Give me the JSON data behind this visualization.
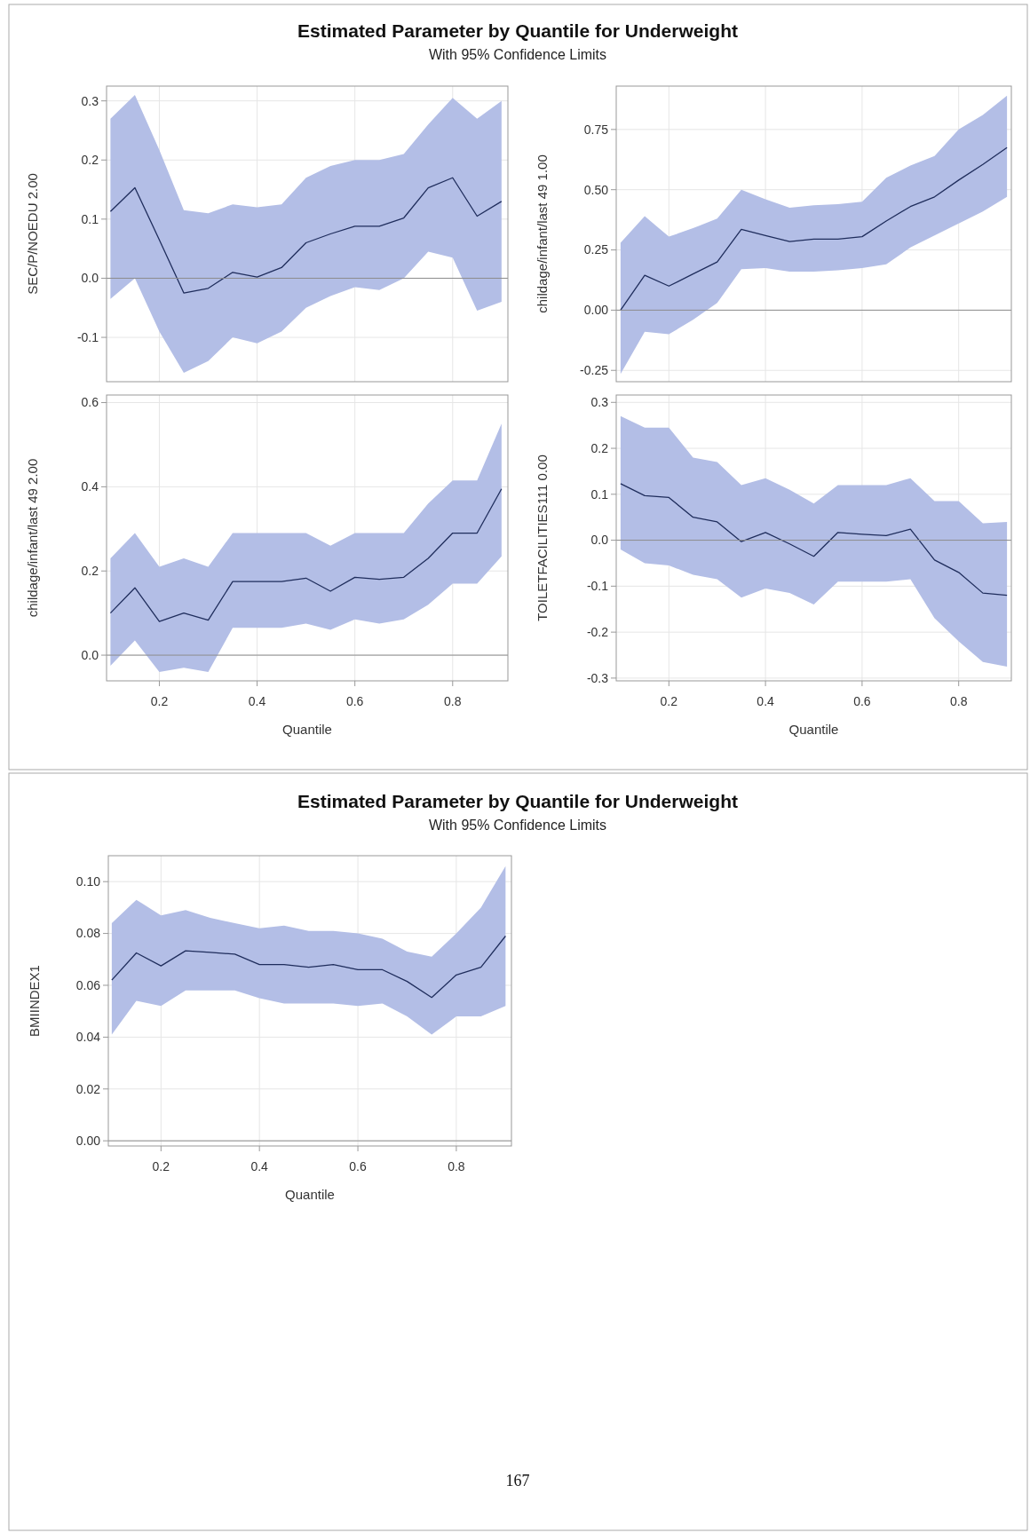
{
  "chart_data": [
    {
      "type": "line",
      "title": "Estimated Parameter by Quantile for Underweight",
      "subtitle": "With 95% Confidence Limits",
      "ylabel": "SEC/P/NOEDU 2.00",
      "x": [
        0.1,
        0.15,
        0.2,
        0.25,
        0.3,
        0.35,
        0.4,
        0.45,
        0.5,
        0.55,
        0.6,
        0.65,
        0.7,
        0.75,
        0.8,
        0.85,
        0.9
      ],
      "xlim": [
        0.092,
        0.913
      ],
      "xticks": [
        0.2,
        0.4,
        0.6,
        0.8
      ],
      "ylim": [
        -0.175,
        0.325
      ],
      "yticks": [
        {
          "value": -0.1,
          "label": "-0.1"
        },
        {
          "value": 0,
          "label": "0.0"
        },
        {
          "value": 0.1,
          "label": "0.1"
        },
        {
          "value": 0.2,
          "label": "0.2"
        },
        {
          "value": 0.3,
          "label": "0.3"
        }
      ],
      "grid": true,
      "tick_labels": "y",
      "ref_lines": [
        {
          "axis": "y",
          "value": 0,
          "color": "#8c8c8c"
        }
      ],
      "series": [
        {
          "color": "#1f2d5c",
          "values": [
            0.113,
            0.153,
            0.065,
            -0.025,
            -0.017,
            0.01,
            0.002,
            0.018,
            0.06,
            0.075,
            0.088,
            0.088,
            0.102,
            0.153,
            0.17,
            0.105,
            0.13
          ],
          "lower": [
            -0.035,
            0.0,
            -0.09,
            -0.16,
            -0.14,
            -0.1,
            -0.11,
            -0.09,
            -0.05,
            -0.03,
            -0.015,
            -0.02,
            0.0,
            0.045,
            0.035,
            -0.055,
            -0.04
          ],
          "upper": [
            0.27,
            0.31,
            0.217,
            0.115,
            0.11,
            0.125,
            0.12,
            0.125,
            0.17,
            0.19,
            0.2,
            0.2,
            0.21,
            0.26,
            0.305,
            0.27,
            0.3
          ]
        }
      ]
    },
    {
      "type": "line",
      "ylabel": "childage/infant/last 49 1.00",
      "x": [
        0.1,
        0.15,
        0.2,
        0.25,
        0.3,
        0.35,
        0.4,
        0.45,
        0.5,
        0.55,
        0.6,
        0.65,
        0.7,
        0.75,
        0.8,
        0.85,
        0.9
      ],
      "xlim": [
        0.091,
        0.909
      ],
      "xticks": [
        0.2,
        0.4,
        0.6,
        0.8
      ],
      "ylim": [
        -0.297,
        0.93
      ],
      "yticks": [
        {
          "value": -0.25,
          "label": "-0.25"
        },
        {
          "value": 0,
          "label": "0.00"
        },
        {
          "value": 0.25,
          "label": "0.25"
        },
        {
          "value": 0.5,
          "label": "0.50"
        },
        {
          "value": 0.75,
          "label": "0.75"
        }
      ],
      "grid": true,
      "tick_labels": "y",
      "ref_lines": [
        {
          "axis": "y",
          "value": 0,
          "color": "#8c8c8c"
        }
      ],
      "series": [
        {
          "color": "#1f2d5c",
          "values": [
            0.0,
            0.145,
            0.1,
            0.15,
            0.2,
            0.335,
            0.31,
            0.285,
            0.295,
            0.295,
            0.305,
            0.37,
            0.43,
            0.47,
            0.54,
            0.605,
            0.675
          ],
          "lower": [
            -0.265,
            -0.09,
            -0.1,
            -0.04,
            0.03,
            0.17,
            0.175,
            0.16,
            0.16,
            0.165,
            0.175,
            0.19,
            0.26,
            0.31,
            0.36,
            0.41,
            0.47
          ],
          "upper": [
            0.28,
            0.39,
            0.305,
            0.34,
            0.38,
            0.5,
            0.46,
            0.425,
            0.435,
            0.44,
            0.45,
            0.55,
            0.6,
            0.64,
            0.75,
            0.81,
            0.89
          ]
        }
      ]
    },
    {
      "type": "line",
      "xlabel": "Quantile",
      "ylabel": "childage/infant/last 49 2.00",
      "x": [
        0.1,
        0.15,
        0.2,
        0.25,
        0.3,
        0.35,
        0.4,
        0.45,
        0.5,
        0.55,
        0.6,
        0.65,
        0.7,
        0.75,
        0.8,
        0.85,
        0.9
      ],
      "xlim": [
        0.092,
        0.913
      ],
      "xticks": [
        0.2,
        0.4,
        0.6,
        0.8
      ],
      "ylim": [
        -0.061,
        0.618
      ],
      "yticks": [
        {
          "value": 0,
          "label": "0.0"
        },
        {
          "value": 0.2,
          "label": "0.2"
        },
        {
          "value": 0.4,
          "label": "0.4"
        },
        {
          "value": 0.6,
          "label": "0.6"
        }
      ],
      "grid": true,
      "ref_lines": [
        {
          "axis": "y",
          "value": 0,
          "color": "#8c8c8c"
        }
      ],
      "series": [
        {
          "color": "#1f2d5c",
          "values": [
            0.1,
            0.16,
            0.08,
            0.1,
            0.083,
            0.175,
            0.175,
            0.175,
            0.183,
            0.152,
            0.185,
            0.18,
            0.185,
            0.23,
            0.29,
            0.29,
            0.395
          ],
          "lower": [
            -0.025,
            0.035,
            -0.04,
            -0.03,
            -0.04,
            0.065,
            0.065,
            0.065,
            0.075,
            0.06,
            0.085,
            0.075,
            0.085,
            0.12,
            0.17,
            0.17,
            0.235
          ],
          "upper": [
            0.23,
            0.29,
            0.21,
            0.23,
            0.21,
            0.29,
            0.29,
            0.29,
            0.29,
            0.26,
            0.29,
            0.29,
            0.29,
            0.36,
            0.415,
            0.415,
            0.55
          ]
        }
      ]
    },
    {
      "type": "line",
      "xlabel": "Quantile",
      "ylabel": "TOILETFACILITIES111 0.00",
      "x": [
        0.1,
        0.15,
        0.2,
        0.25,
        0.3,
        0.35,
        0.4,
        0.45,
        0.5,
        0.55,
        0.6,
        0.65,
        0.7,
        0.75,
        0.8,
        0.85,
        0.9
      ],
      "xlim": [
        0.091,
        0.909
      ],
      "xticks": [
        0.2,
        0.4,
        0.6,
        0.8
      ],
      "ylim": [
        -0.306,
        0.316
      ],
      "yticks": [
        {
          "value": -0.3,
          "label": "-0.3"
        },
        {
          "value": -0.2,
          "label": "-0.2"
        },
        {
          "value": -0.1,
          "label": "-0.1"
        },
        {
          "value": 0,
          "label": "0.0"
        },
        {
          "value": 0.1,
          "label": "0.1"
        },
        {
          "value": 0.2,
          "label": "0.2"
        },
        {
          "value": 0.3,
          "label": "0.3"
        }
      ],
      "grid": true,
      "ref_lines": [
        {
          "axis": "y",
          "value": 0,
          "color": "#8c8c8c"
        }
      ],
      "series": [
        {
          "color": "#1f2d5c",
          "values": [
            0.123,
            0.097,
            0.093,
            0.05,
            0.04,
            -0.003,
            0.017,
            -0.008,
            -0.035,
            0.017,
            0.013,
            0.01,
            0.024,
            -0.043,
            -0.07,
            -0.115,
            -0.12
          ],
          "lower": [
            -0.02,
            -0.05,
            -0.055,
            -0.075,
            -0.085,
            -0.125,
            -0.105,
            -0.115,
            -0.14,
            -0.09,
            -0.09,
            -0.09,
            -0.085,
            -0.17,
            -0.22,
            -0.265,
            -0.275
          ],
          "upper": [
            0.27,
            0.245,
            0.245,
            0.18,
            0.17,
            0.12,
            0.135,
            0.11,
            0.08,
            0.12,
            0.12,
            0.12,
            0.135,
            0.085,
            0.085,
            0.037,
            0.04
          ]
        }
      ]
    },
    {
      "type": "line",
      "title": "Estimated Parameter by Quantile for Underweight",
      "subtitle": "With 95% Confidence Limits",
      "xlabel": "Quantile",
      "ylabel": "BMIINDEX1",
      "annotations": [
        "167"
      ],
      "x": [
        0.1,
        0.15,
        0.2,
        0.25,
        0.3,
        0.35,
        0.4,
        0.45,
        0.5,
        0.55,
        0.6,
        0.65,
        0.7,
        0.75,
        0.8,
        0.85,
        0.9
      ],
      "xlim": [
        0.093,
        0.912
      ],
      "xticks": [
        0.2,
        0.4,
        0.6,
        0.8
      ],
      "ylim": [
        -0.002,
        0.11
      ],
      "yticks": [
        {
          "value": 0,
          "label": "0.00"
        },
        {
          "value": 0.02,
          "label": "0.02"
        },
        {
          "value": 0.04,
          "label": "0.04"
        },
        {
          "value": 0.06,
          "label": "0.06"
        },
        {
          "value": 0.08,
          "label": "0.08"
        },
        {
          "value": 0.1,
          "label": "0.10"
        }
      ],
      "grid": true,
      "ref_lines": [
        {
          "axis": "y",
          "value": 0,
          "color": "#8c8c8c"
        }
      ],
      "series": [
        {
          "color": "#1f2d5c",
          "values": [
            0.062,
            0.0725,
            0.0675,
            0.0733,
            0.0727,
            0.072,
            0.068,
            0.068,
            0.067,
            0.068,
            0.066,
            0.066,
            0.0615,
            0.0553,
            0.064,
            0.067,
            0.079
          ],
          "lower": [
            0.041,
            0.054,
            0.052,
            0.058,
            0.058,
            0.058,
            0.055,
            0.053,
            0.053,
            0.053,
            0.052,
            0.053,
            0.048,
            0.041,
            0.048,
            0.048,
            0.052
          ],
          "upper": [
            0.084,
            0.093,
            0.087,
            0.089,
            0.086,
            0.084,
            0.082,
            0.083,
            0.081,
            0.081,
            0.08,
            0.078,
            0.073,
            0.071,
            0.08,
            0.09,
            0.106
          ]
        }
      ]
    }
  ]
}
